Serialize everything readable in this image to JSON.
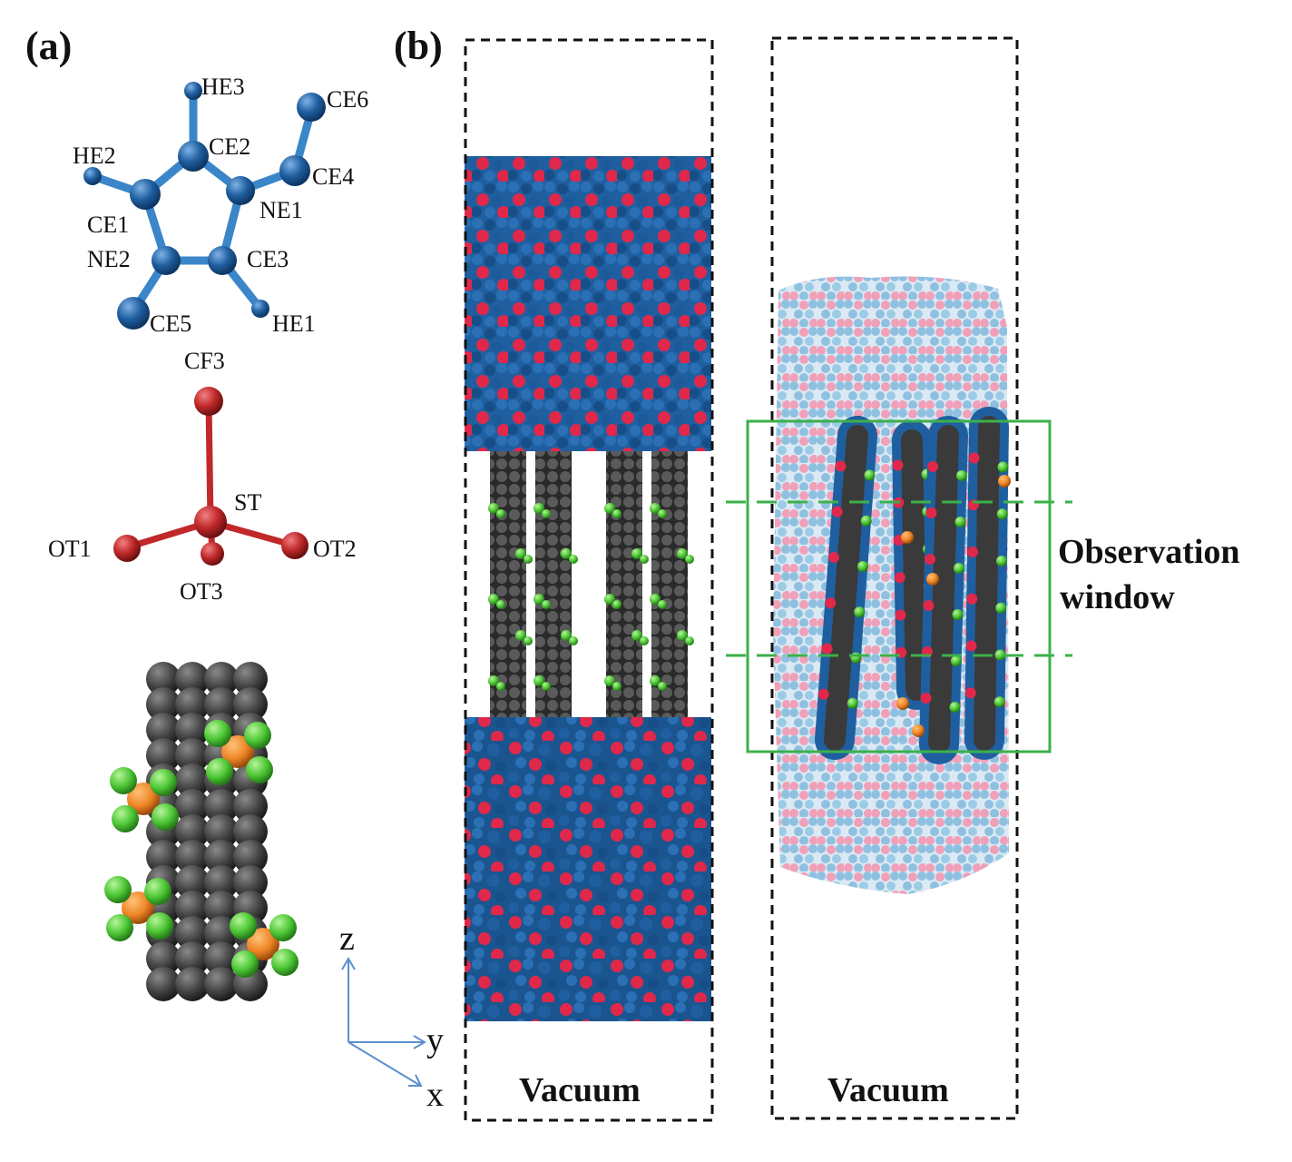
{
  "panels": {
    "a": {
      "label": "(a)"
    },
    "b": {
      "label": "(b)"
    }
  },
  "cation": {
    "atoms": {
      "HE3": "HE3",
      "CE6": "CE6",
      "HE2": "HE2",
      "CE2": "CE2",
      "CE4": "CE4",
      "NE1": "NE1",
      "CE1": "CE1",
      "NE2": "NE2",
      "CE3": "CE3",
      "CE5": "CE5",
      "HE1": "HE1"
    },
    "color": "#1f5fa0"
  },
  "anion": {
    "atoms": {
      "CF3": "CF3",
      "ST": "ST",
      "OT1": "OT1",
      "OT2": "OT2",
      "OT3": "OT3"
    },
    "color": "#c0282a"
  },
  "axes": {
    "z": "z",
    "y": "y",
    "x": "x",
    "color": "#5b8fd0"
  },
  "simulation_boxes": {
    "left_vacuum": "Vacuum",
    "right_vacuum": "Vacuum",
    "observation_window": [
      "Observation",
      "window"
    ]
  },
  "colors": {
    "il_blue": "#1f5fa0",
    "il_red": "#e0284a",
    "cnt_gray": "#4a4a4a",
    "fluorine_green": "#58d13c",
    "sulfur_orange": "#f08a2a",
    "light_blue": "#8fc0e0",
    "light_pink": "#f0a0b8",
    "window_green": "#3cb04a"
  }
}
